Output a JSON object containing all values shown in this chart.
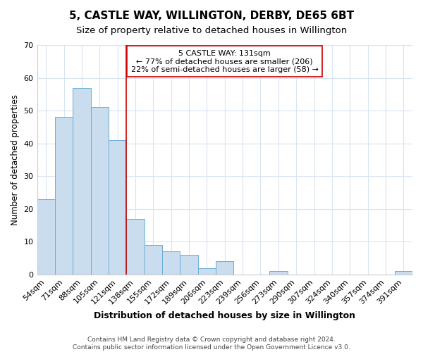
{
  "title": "5, CASTLE WAY, WILLINGTON, DERBY, DE65 6BT",
  "subtitle": "Size of property relative to detached houses in Willington",
  "xlabel": "Distribution of detached houses by size in Willington",
  "ylabel": "Number of detached properties",
  "categories": [
    "54sqm",
    "71sqm",
    "88sqm",
    "105sqm",
    "121sqm",
    "138sqm",
    "155sqm",
    "172sqm",
    "189sqm",
    "206sqm",
    "223sqm",
    "239sqm",
    "256sqm",
    "273sqm",
    "290sqm",
    "307sqm",
    "324sqm",
    "340sqm",
    "357sqm",
    "374sqm",
    "391sqm"
  ],
  "values": [
    23,
    48,
    57,
    51,
    41,
    17,
    9,
    7,
    6,
    2,
    4,
    0,
    0,
    1,
    0,
    0,
    0,
    0,
    0,
    0,
    1
  ],
  "bar_color": "#c9ddef",
  "bar_edge_color": "#6aaed6",
  "vline_x": 5.0,
  "vline_color": "#cc0000",
  "annotation_text": "5 CASTLE WAY: 131sqm\n← 77% of detached houses are smaller (206)\n22% of semi-detached houses are larger (58) →",
  "annotation_box_color": "white",
  "annotation_box_edge": "#cc0000",
  "ylim": [
    0,
    70
  ],
  "yticks": [
    0,
    10,
    20,
    30,
    40,
    50,
    60,
    70
  ],
  "footer": "Contains HM Land Registry data © Crown copyright and database right 2024.\nContains public sector information licensed under the Open Government Licence v3.0.",
  "title_fontsize": 11,
  "subtitle_fontsize": 9.5,
  "xlabel_fontsize": 9,
  "ylabel_fontsize": 8.5,
  "tick_fontsize": 8,
  "annotation_fontsize": 8,
  "footer_fontsize": 6.5,
  "background_color": "#ffffff",
  "grid_color": "#d8e4f0"
}
